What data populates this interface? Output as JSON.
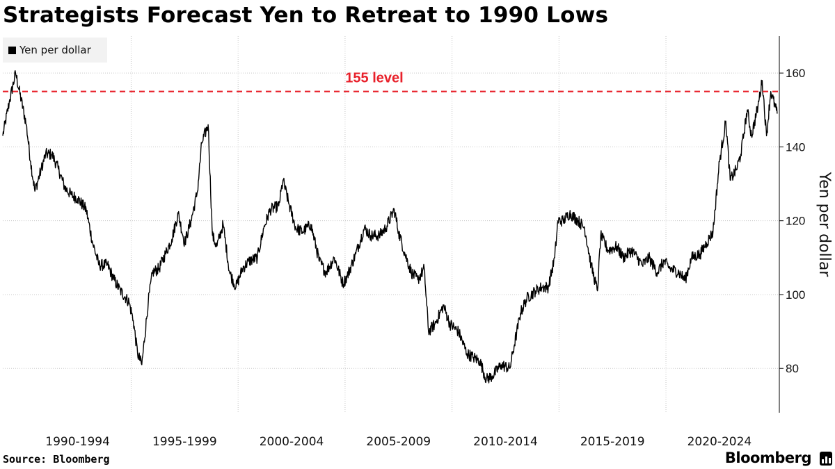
{
  "title": "Strategists Forecast Yen to Retreat to 1990 Lows",
  "source": "Source: Bloomberg",
  "brand": "Bloomberg",
  "brand_icon": "bloomberg-terminal-icon",
  "colors": {
    "series": "#000000",
    "reference": "#e8202a",
    "grid": "#c8c8c8",
    "legend_bg": "#f2f2f2"
  },
  "chart_data": {
    "type": "line",
    "title": "Strategists Forecast Yen to Retreat to 1990 Lows",
    "ylabel": "Yen per dollar",
    "xlabel": "",
    "y_axis_side": "right",
    "ylim": [
      68,
      170
    ],
    "yticks": [
      80,
      100,
      120,
      140,
      160
    ],
    "xlim": [
      1989.0,
      2025.3
    ],
    "xtick_labels": [
      "1990-1994",
      "1995-1999",
      "2000-2004",
      "2005-2009",
      "2010-2014",
      "2015-2019",
      "2020-2024"
    ],
    "xtick_ranges": [
      [
        1990,
        1995
      ],
      [
        1995,
        2000
      ],
      [
        2000,
        2005
      ],
      [
        2005,
        2010
      ],
      [
        2010,
        2015
      ],
      [
        2015,
        2020
      ],
      [
        2020,
        2025
      ]
    ],
    "xgrid": [
      1995,
      2000,
      2005,
      2010,
      2015,
      2020
    ],
    "grid": true,
    "legend_position": "top-left",
    "series": [
      {
        "name": "Yen per dollar",
        "x": [
          1989.0,
          1989.3,
          1989.6,
          1990.1,
          1990.3,
          1990.5,
          1990.8,
          1991.0,
          1991.3,
          1991.6,
          1991.9,
          1992.2,
          1992.5,
          1992.9,
          1993.2,
          1993.5,
          1993.9,
          1994.2,
          1994.5,
          1994.9,
          1995.1,
          1995.3,
          1995.5,
          1995.8,
          1996.0,
          1996.3,
          1996.6,
          1996.9,
          1997.2,
          1997.5,
          1997.8,
          1998.1,
          1998.3,
          1998.6,
          1998.8,
          1999.0,
          1999.3,
          1999.6,
          1999.9,
          2000.2,
          2000.5,
          2000.9,
          2001.2,
          2001.5,
          2001.9,
          2002.1,
          2002.4,
          2002.7,
          2003.0,
          2003.4,
          2003.8,
          2004.1,
          2004.5,
          2004.9,
          2005.1,
          2005.5,
          2005.9,
          2006.2,
          2006.6,
          2006.9,
          2007.3,
          2007.5,
          2007.8,
          2008.1,
          2008.4,
          2008.7,
          2008.9,
          2009.2,
          2009.6,
          2009.9,
          2010.3,
          2010.7,
          2011.0,
          2011.3,
          2011.6,
          2011.9,
          2012.3,
          2012.7,
          2012.9,
          2013.2,
          2013.5,
          2013.9,
          2014.2,
          2014.5,
          2014.8,
          2014.95,
          2015.2,
          2015.5,
          2015.9,
          2016.2,
          2016.5,
          2016.8,
          2016.95,
          2017.3,
          2017.7,
          2018.0,
          2018.4,
          2018.9,
          2019.2,
          2019.6,
          2019.9,
          2020.2,
          2020.6,
          2020.9,
          2021.2,
          2021.6,
          2021.9,
          2022.2,
          2022.5,
          2022.8,
          2023.0,
          2023.3,
          2023.5,
          2023.8,
          2024.0,
          2024.3,
          2024.5,
          2024.7,
          2024.9,
          2025.2
        ],
        "values": [
          143,
          152,
          160,
          146,
          136,
          128,
          134,
          138,
          138,
          134,
          129,
          127,
          126,
          123,
          114,
          108,
          108,
          104,
          101,
          98,
          93,
          84,
          81,
          98,
          106,
          107,
          111,
          115,
          122,
          114,
          120,
          128,
          141,
          146,
          116,
          113,
          119,
          106,
          102,
          107,
          109,
          110,
          118,
          123,
          124,
          131,
          124,
          118,
          117,
          119,
          109,
          106,
          110,
          103,
          105,
          111,
          118,
          116,
          116,
          118,
          123,
          117,
          111,
          106,
          104,
          107,
          90,
          92,
          97,
          92,
          90,
          84,
          83,
          82,
          77,
          78,
          81,
          80,
          86,
          95,
          99,
          101,
          102,
          102,
          110,
          120,
          120,
          122,
          120,
          118,
          108,
          101,
          116,
          112,
          113,
          110,
          112,
          108,
          110,
          106,
          109,
          107,
          106,
          104,
          110,
          111,
          114,
          117,
          136,
          147,
          131,
          134,
          138,
          150,
          143,
          151,
          158,
          143,
          155,
          149
        ],
        "noise": 1.6
      }
    ],
    "reference_lines": [
      {
        "y": 155,
        "label": "155 level",
        "color": "#e8202a",
        "style": "dashed"
      }
    ]
  }
}
